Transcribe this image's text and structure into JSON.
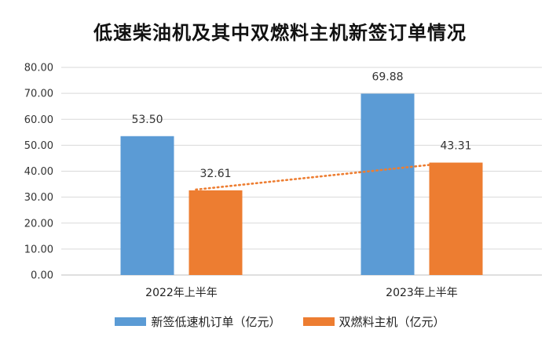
{
  "chart_data": {
    "type": "bar",
    "title": "低速柴油机及其中双燃料主机新签订单情况",
    "categories": [
      "2022年上半年",
      "2023年上半年"
    ],
    "series": [
      {
        "name": "新签低速机订单（亿元）",
        "values": [
          53.5,
          69.88
        ],
        "labels": [
          "53.50",
          "69.88"
        ],
        "color": "#5b9bd5"
      },
      {
        "name": "双燃料主机（亿元）",
        "values": [
          32.61,
          43.31
        ],
        "labels": [
          "32.61",
          "43.31"
        ],
        "color": "#ed7d31"
      }
    ],
    "trendline": {
      "series": "双燃料主机（亿元）",
      "style": "dotted",
      "color": "#ed7d31"
    },
    "ylim": [
      0,
      80
    ],
    "yticks": [
      "0.00",
      "10.00",
      "20.00",
      "30.00",
      "40.00",
      "50.00",
      "60.00",
      "70.00",
      "80.00"
    ],
    "grid": true,
    "legend": "bottom"
  }
}
